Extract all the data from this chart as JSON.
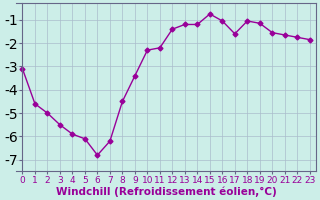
{
  "x": [
    0,
    1,
    2,
    3,
    4,
    5,
    6,
    7,
    8,
    9,
    10,
    11,
    12,
    13,
    14,
    15,
    16,
    17,
    18,
    19,
    20,
    21,
    22,
    23
  ],
  "y": [
    -3.1,
    -4.6,
    -5.0,
    -5.5,
    -5.9,
    -6.1,
    -6.8,
    -6.2,
    -4.5,
    -3.4,
    -2.3,
    -2.2,
    -1.4,
    -1.2,
    -1.2,
    -0.75,
    -1.05,
    -1.6,
    -1.05,
    -1.15,
    -1.55,
    -1.65,
    -1.75,
    -1.85
  ],
  "line_color": "#990099",
  "marker": "D",
  "marker_size": 2.5,
  "bg_color": "#cceee8",
  "grid_color": "#aabccc",
  "xlabel": "Windchill (Refroidissement éolien,°C)",
  "xlabel_fontsize": 7.5,
  "tick_fontsize": 6.5,
  "ylim": [
    -7.5,
    -0.3
  ],
  "xlim": [
    -0.5,
    23.5
  ],
  "yticks": [
    -7,
    -6,
    -5,
    -4,
    -3,
    -2,
    -1
  ],
  "xticks": [
    0,
    1,
    2,
    3,
    4,
    5,
    6,
    7,
    8,
    9,
    10,
    11,
    12,
    13,
    14,
    15,
    16,
    17,
    18,
    19,
    20,
    21,
    22,
    23
  ],
  "spine_color": "#666688",
  "line_width": 1.0,
  "fig_width": 3.2,
  "fig_height": 2.0,
  "dpi": 100
}
